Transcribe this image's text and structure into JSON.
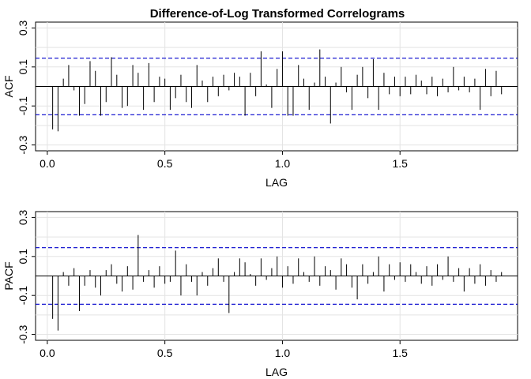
{
  "chart_data": {
    "title": "Difference-of-Log Transformed Correlograms",
    "type": "bar",
    "colors": {
      "bars": "#000000",
      "ci": "#0000cc",
      "grid": "#e3e3e3",
      "zero": "#000000"
    },
    "grid": true,
    "panels": [
      {
        "id": "acf",
        "ylabel": "ACF",
        "xlabel": "LAG",
        "xlim": [
          -0.05,
          2.0
        ],
        "ylim": [
          -0.33,
          0.33
        ],
        "xticks": [
          0.0,
          0.5,
          1.0,
          1.5
        ],
        "xtick_labels": [
          "0.0",
          "0.5",
          "1.0",
          "1.5"
        ],
        "yticks": [
          -0.3,
          -0.1,
          0.1,
          0.3
        ],
        "ytick_labels": [
          "-0.3",
          "-0.1",
          "0.1",
          "0.3"
        ],
        "ci": 0.145,
        "x": [
          0.0227,
          0.0455,
          0.0682,
          0.0909,
          0.1136,
          0.1364,
          0.1591,
          0.1818,
          0.2045,
          0.2273,
          0.25,
          0.2727,
          0.2955,
          0.3182,
          0.3409,
          0.3636,
          0.3864,
          0.4091,
          0.4318,
          0.4545,
          0.4773,
          0.5,
          0.5227,
          0.5455,
          0.5682,
          0.5909,
          0.6136,
          0.6364,
          0.6591,
          0.6818,
          0.7045,
          0.7273,
          0.75,
          0.7727,
          0.7955,
          0.8182,
          0.8409,
          0.8636,
          0.8864,
          0.9091,
          0.9318,
          0.9545,
          0.9773,
          1.0,
          1.0227,
          1.0455,
          1.0682,
          1.0909,
          1.1136,
          1.1364,
          1.1591,
          1.1818,
          1.2045,
          1.2273,
          1.25,
          1.2727,
          1.2955,
          1.3182,
          1.3409,
          1.3636,
          1.3864,
          1.4091,
          1.4318,
          1.4545,
          1.4773,
          1.5,
          1.5227,
          1.5455,
          1.5682,
          1.5909,
          1.6136,
          1.6364,
          1.6591,
          1.6818,
          1.7045,
          1.7273,
          1.75,
          1.7727,
          1.7955,
          1.8182,
          1.8409,
          1.8636,
          1.8864,
          1.9091,
          1.9318
        ],
        "values": [
          -0.22,
          -0.23,
          0.04,
          0.11,
          -0.02,
          -0.15,
          -0.09,
          0.13,
          0.08,
          -0.15,
          -0.08,
          0.15,
          0.06,
          -0.11,
          -0.1,
          0.11,
          0.07,
          -0.12,
          0.12,
          -0.08,
          0.05,
          0.04,
          -0.12,
          -0.06,
          0.06,
          -0.08,
          -0.11,
          0.11,
          0.03,
          -0.08,
          0.05,
          -0.05,
          0.06,
          -0.02,
          0.07,
          0.05,
          -0.15,
          0.07,
          -0.05,
          0.18,
          0.01,
          -0.11,
          0.09,
          0.18,
          -0.15,
          -0.15,
          0.11,
          0.04,
          -0.12,
          0.02,
          0.19,
          0.05,
          -0.19,
          0.02,
          0.1,
          -0.03,
          -0.12,
          0.06,
          0.1,
          -0.06,
          0.14,
          -0.12,
          0.07,
          -0.04,
          0.05,
          -0.05,
          0.05,
          -0.04,
          0.06,
          0.03,
          -0.04,
          0.05,
          -0.05,
          0.04,
          -0.03,
          0.1,
          -0.02,
          0.05,
          -0.03,
          0.04,
          -0.12,
          0.09,
          -0.05,
          0.08,
          -0.04
        ],
        "bar_lags": [
          0.0227,
          0.0455,
          0.0682,
          0.0909,
          0.1136,
          0.1364,
          0.1591,
          0.1818,
          0.2045,
          0.2273,
          0.25,
          0.2727,
          0.2955,
          0.3182,
          0.3409,
          0.3636,
          0.3864,
          0.4091,
          0.4318,
          0.4545,
          0.4773,
          0.5,
          0.5227,
          0.5455,
          0.5682,
          0.5909,
          0.6136,
          0.6364,
          0.6591,
          0.6818,
          0.7045,
          0.7273,
          0.75,
          0.7727,
          0.7955,
          0.8182,
          0.8409,
          0.8636,
          0.8864,
          0.9091,
          0.9318,
          0.9545,
          0.9773,
          1.0,
          1.0227,
          1.0455,
          1.0682,
          1.0909,
          1.1136,
          1.1364,
          1.1591,
          1.1818,
          1.2045,
          1.2273,
          1.25,
          1.2727,
          1.2955,
          1.3182,
          1.3409,
          1.3636,
          1.3864,
          1.4091,
          1.4318,
          1.4545,
          1.4773,
          1.5,
          1.5227,
          1.5455,
          1.5682,
          1.5909,
          1.6136,
          1.6364,
          1.6591,
          1.6818,
          1.7045,
          1.7273,
          1.75,
          1.7727,
          1.7955,
          1.8182,
          1.8409,
          1.8636,
          1.8864,
          1.9091,
          1.9318
        ],
        "bar_values": [
          -0.22,
          -0.23,
          0.04,
          0.11,
          -0.02,
          -0.15,
          -0.09,
          0.13,
          0.08,
          -0.15,
          -0.08,
          0.15,
          0.06,
          -0.11,
          -0.1,
          0.11,
          0.07,
          -0.12,
          0.12,
          -0.08,
          0.05,
          0.04,
          -0.12,
          -0.06,
          0.06,
          -0.08,
          -0.11,
          0.11,
          0.03,
          -0.08,
          0.05,
          -0.05,
          0.06,
          -0.02,
          0.07,
          0.05,
          -0.15,
          0.07,
          -0.05,
          0.18,
          0.01,
          -0.11,
          0.09,
          0.18,
          -0.15,
          -0.15,
          0.11,
          0.04,
          -0.12,
          0.02,
          0.19,
          0.05,
          -0.19,
          0.02,
          0.1,
          -0.03,
          -0.12,
          0.06,
          0.1,
          -0.06,
          0.14,
          -0.12,
          0.07,
          -0.04,
          0.05,
          -0.05,
          0.05,
          -0.04,
          0.06,
          0.03,
          -0.04,
          0.05,
          -0.05,
          0.04,
          -0.03,
          0.1,
          -0.02,
          0.05,
          -0.03,
          0.04,
          -0.12,
          0.09,
          -0.05,
          0.08,
          -0.04
        ]
      },
      {
        "id": "pacf",
        "ylabel": "PACF",
        "xlabel": "LAG",
        "xlim": [
          -0.05,
          2.0
        ],
        "ylim": [
          -0.33,
          0.33
        ],
        "xticks": [
          0.0,
          0.5,
          1.0,
          1.5
        ],
        "xtick_labels": [
          "0.0",
          "0.5",
          "1.0",
          "1.5"
        ],
        "yticks": [
          -0.3,
          -0.1,
          0.1,
          0.3
        ],
        "ytick_labels": [
          "-0.3",
          "-0.1",
          "0.1",
          "0.3"
        ],
        "ci": 0.145,
        "bar_lags": [
          0.0227,
          0.0455,
          0.0682,
          0.0909,
          0.1136,
          0.1364,
          0.1591,
          0.1818,
          0.2045,
          0.2273,
          0.25,
          0.2727,
          0.2955,
          0.3182,
          0.3409,
          0.3636,
          0.3864,
          0.4091,
          0.4318,
          0.4545,
          0.4773,
          0.5,
          0.5227,
          0.5455,
          0.5682,
          0.5909,
          0.6136,
          0.6364,
          0.6591,
          0.6818,
          0.7045,
          0.7273,
          0.75,
          0.7727,
          0.7955,
          0.8182,
          0.8409,
          0.8636,
          0.8864,
          0.9091,
          0.9318,
          0.9545,
          0.9773,
          1.0,
          1.0227,
          1.0455,
          1.0682,
          1.0909,
          1.1136,
          1.1364,
          1.1591,
          1.1818,
          1.2045,
          1.2273,
          1.25,
          1.2727,
          1.2955,
          1.3182,
          1.3409,
          1.3636,
          1.3864,
          1.4091,
          1.4318,
          1.4545,
          1.4773,
          1.5,
          1.5227,
          1.5455,
          1.5682,
          1.5909,
          1.6136,
          1.6364,
          1.6591,
          1.6818,
          1.7045,
          1.7273,
          1.75,
          1.7727,
          1.7955,
          1.8182,
          1.8409,
          1.8636,
          1.8864,
          1.9091,
          1.9318
        ],
        "bar_values": [
          -0.22,
          -0.28,
          0.02,
          -0.05,
          0.04,
          -0.18,
          -0.05,
          0.03,
          -0.06,
          -0.1,
          0.03,
          0.06,
          -0.04,
          -0.08,
          0.05,
          -0.07,
          0.21,
          -0.03,
          0.03,
          -0.06,
          0.05,
          -0.04,
          -0.03,
          0.13,
          -0.1,
          0.06,
          -0.03,
          -0.1,
          0.02,
          -0.05,
          0.04,
          0.09,
          -0.03,
          -0.19,
          0.02,
          0.09,
          0.07,
          0.01,
          -0.05,
          0.09,
          -0.02,
          0.04,
          0.1,
          -0.06,
          0.05,
          -0.04,
          0.09,
          0.02,
          -0.03,
          0.1,
          -0.05,
          0.05,
          0.03,
          -0.07,
          0.09,
          0.06,
          -0.06,
          -0.12,
          0.06,
          -0.04,
          0.02,
          0.1,
          -0.08,
          0.06,
          -0.02,
          0.07,
          -0.03,
          0.06,
          0.02,
          -0.04,
          0.05,
          -0.05,
          0.06,
          -0.02,
          0.1,
          -0.03,
          0.04,
          -0.08,
          0.04,
          -0.04,
          0.06,
          -0.05,
          0.03,
          -0.03,
          0.02
        ]
      }
    ]
  }
}
